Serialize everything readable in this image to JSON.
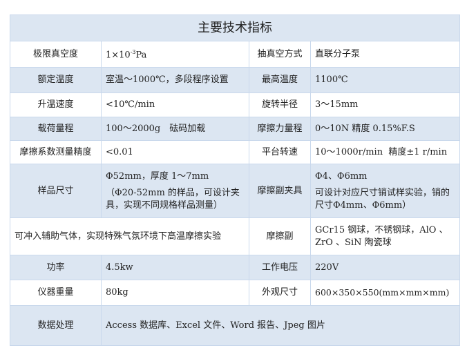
{
  "title": "主要技术指标",
  "rows": [
    {
      "l1": "极限真空度",
      "v1": "1×10",
      "v1_sup": "-3",
      "v1_unit": "Pa",
      "l2": "抽真空方式",
      "v2": "直联分子泵"
    },
    {
      "l1": "额定温度",
      "v1": "室温～1000℃，多段程序设置",
      "l2": "最高温度",
      "v2": "1100℃"
    },
    {
      "l1": "升温速度",
      "v1": "<10℃/min",
      "l2": "旋转半径",
      "v2": "3～15mm"
    },
    {
      "l1": "载荷量程",
      "v1": "100～2000g　砝码加载",
      "l2": "摩擦力量程",
      "v2": "0～10N 精度 0.15%F.S"
    },
    {
      "l1": "摩擦系数测量精度",
      "v1": "<0.01",
      "l2": "平台转速",
      "v2": "10～1000r/min  精度±1 r/min"
    },
    {
      "l1": "样品尺寸",
      "v1": "Φ52mm，厚度 1～7mm",
      "v1b": "（Φ20-52mm 的样品，可设计夹具，实现不同规格样品测量）",
      "l2": "摩擦副夹具",
      "v2": "Φ4、Φ6mm",
      "v2b": "可设计对应尺寸销试样实验，销的尺寸Φ4mm、Φ6mm）"
    },
    {
      "v1": "可冲入辅助气体，实现特殊气氛环境下高温摩擦实验",
      "l2": "摩擦副",
      "v2": "GCr15 钢球，不锈钢球，AlO 、ZrO 、SiN 陶瓷球"
    },
    {
      "l1": "功率",
      "v1": "4.5kw",
      "l2": "工作电压",
      "v2": "220V"
    },
    {
      "l1": "仪器重量",
      "v1": "80kg",
      "l2": "外观尺寸",
      "v2": "600×350×550(mm×mm×mm)"
    },
    {
      "l1": "数据处理",
      "v1": "Access 数据库、Excel 文件、Word 报告、Jpeg 图片"
    }
  ]
}
